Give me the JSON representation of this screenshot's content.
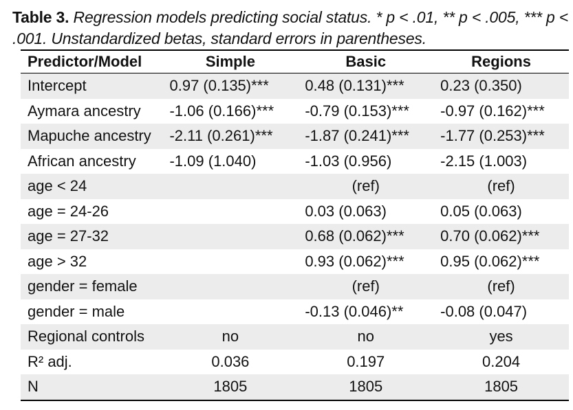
{
  "caption": {
    "label": "Table 3.",
    "line1": " Regression models predicting social status. * p < .01, ** p < .005, *** p <",
    "line2": ".001. Unstandardized betas, standard errors in parentheses."
  },
  "table": {
    "headers": [
      "Predictor/Model",
      "Simple",
      "Basic",
      "Regions"
    ],
    "rows": [
      {
        "label": "Intercept",
        "simple": "0.97 (0.135)***",
        "basic": "0.48 (0.131)***",
        "regions": "0.23 (0.350)"
      },
      {
        "label": "Aymara ancestry",
        "simple": "-1.06 (0.166)***",
        "basic": "-0.79 (0.153)***",
        "regions": "-0.97 (0.162)***"
      },
      {
        "label": "Mapuche ancestry",
        "simple": "-2.11 (0.261)***",
        "basic": "-1.87 (0.241)***",
        "regions": "-1.77 (0.253)***"
      },
      {
        "label": "African ancestry",
        "simple": "-1.09 (1.040)",
        "basic": "-1.03 (0.956)",
        "regions": "-2.15 (1.003)"
      },
      {
        "label": "age < 24",
        "simple": "",
        "basic": "(ref)",
        "regions": "(ref)"
      },
      {
        "label": "age = 24-26",
        "simple": "",
        "basic": "0.03 (0.063)",
        "regions": "0.05 (0.063)"
      },
      {
        "label": "age = 27-32",
        "simple": "",
        "basic": "0.68 (0.062)***",
        "regions": "0.70 (0.062)***"
      },
      {
        "label": "age > 32",
        "simple": "",
        "basic": "0.93 (0.062)***",
        "regions": "0.95 (0.062)***"
      },
      {
        "label": "gender = female",
        "simple": "",
        "basic": "(ref)",
        "regions": "(ref)"
      },
      {
        "label": "gender = male",
        "simple": "",
        "basic": "-0.13 (0.046)**",
        "regions": "-0.08 (0.047)"
      },
      {
        "label": "Regional controls",
        "simple": "no",
        "basic": "no",
        "regions": "yes"
      },
      {
        "label": "R² adj.",
        "simple": "0.036",
        "basic": "0.197",
        "regions": "0.204"
      },
      {
        "label": "N",
        "simple": "1805",
        "basic": "1805",
        "regions": "1805"
      }
    ]
  }
}
